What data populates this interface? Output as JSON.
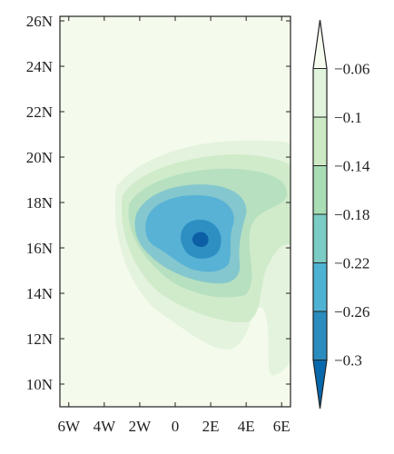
{
  "chart_data": {
    "type": "heatmap",
    "title": "",
    "xlabel": "",
    "ylabel": "",
    "x_ticks": [
      "6W",
      "4W",
      "2W",
      "0",
      "2E",
      "4E",
      "6E"
    ],
    "x_tick_values": [
      -6,
      -4,
      -2,
      0,
      2,
      4,
      6
    ],
    "y_ticks": [
      "26N",
      "24N",
      "22N",
      "20N",
      "18N",
      "16N",
      "14N",
      "12N",
      "10N"
    ],
    "y_tick_values": [
      26,
      24,
      22,
      20,
      18,
      16,
      14,
      12,
      10
    ],
    "xlim": [
      -6.5,
      6.5
    ],
    "ylim": [
      9,
      26.2
    ],
    "colorbar": {
      "levels": [
        -0.06,
        -0.1,
        -0.14,
        -0.18,
        -0.22,
        -0.26,
        -0.3
      ],
      "labels": [
        "−0.06",
        "−0.1",
        "−0.14",
        "−0.18",
        "−0.22",
        "−0.26",
        "−0.3"
      ],
      "colors": [
        "#f7fcf0",
        "#e0f3db",
        "#ccebc5",
        "#a8ddb5",
        "#7bccc4",
        "#4eb3d3",
        "#2b8cbe",
        "#0868ac"
      ],
      "extend": "both"
    },
    "contour_fills": [
      "#f4faec",
      "#e4f3de",
      "#d0ebca",
      "#b6e0c0",
      "#85c7ce",
      "#58b2d6",
      "#2e8fc3",
      "#0d5fa5"
    ],
    "contours": [
      {
        "level": -0.06,
        "center": [
          0.8,
          15.6
        ]
      },
      {
        "level": -0.1,
        "center": [
          0.6,
          16.4
        ]
      },
      {
        "level": -0.14,
        "center": [
          0.4,
          16.6
        ]
      },
      {
        "level": -0.18,
        "center": [
          0.0,
          16.8
        ]
      },
      {
        "level": -0.22,
        "center": [
          -0.2,
          16.5
        ]
      },
      {
        "level": -0.26,
        "center": [
          1.3,
          16.3
        ]
      },
      {
        "level": -0.3,
        "center": [
          1.1,
          16.2
        ]
      }
    ]
  }
}
